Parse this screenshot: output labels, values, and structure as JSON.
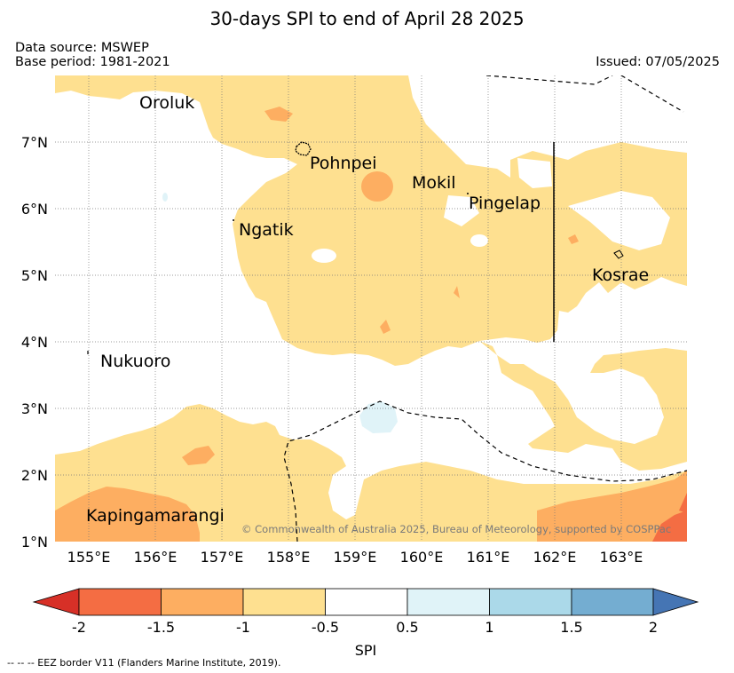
{
  "title": "30-days SPI to end of April 28 2025",
  "data_source": "Data source: MSWEP",
  "base_period": "Base period: 1981-2021",
  "issued": "Issued: 07/05/2025",
  "copyright": "© Commonwealth of Australia 2025, Bureau of Meteorology, supported by COSPPac",
  "footnote": "--  --  -- EEZ border V11 (Flanders Marine Institute, 2019).",
  "lat_labels": [
    "7°N",
    "6°N",
    "5°N",
    "4°N",
    "3°N",
    "2°N",
    "1°N"
  ],
  "lon_labels": [
    "155°E",
    "156°E",
    "157°E",
    "158°E",
    "159°E",
    "160°E",
    "161°E",
    "162°E",
    "163°E"
  ],
  "places": {
    "oroluk": "Oroluk",
    "pohnpei": "Pohnpei",
    "mokil": "Mokil",
    "pingelap": "Pingelap",
    "ngatik": "Ngatik",
    "kosrae": "Kosrae",
    "nukuoro": "Nukuoro",
    "kapingamarangi": "Kapingamarangi"
  },
  "colorbar": {
    "label": "SPI",
    "ticks": [
      "-2",
      "-1.5",
      "-1",
      "-0.5",
      "0.5",
      "1",
      "1.5",
      "2"
    ],
    "colors": {
      "below_-2": "#d73027",
      "-2_to_-1.5": "#f46d43",
      "-1.5_to_-1": "#fdae61",
      "-1_to_-0.5": "#fee090",
      "-0.5_to_0.5": "#ffffff",
      "0.5_to_1": "#e0f3f8",
      "1_to_1.5": "#abd9e9",
      "1.5_to_2": "#74add1",
      "above_2": "#4575b4"
    }
  }
}
